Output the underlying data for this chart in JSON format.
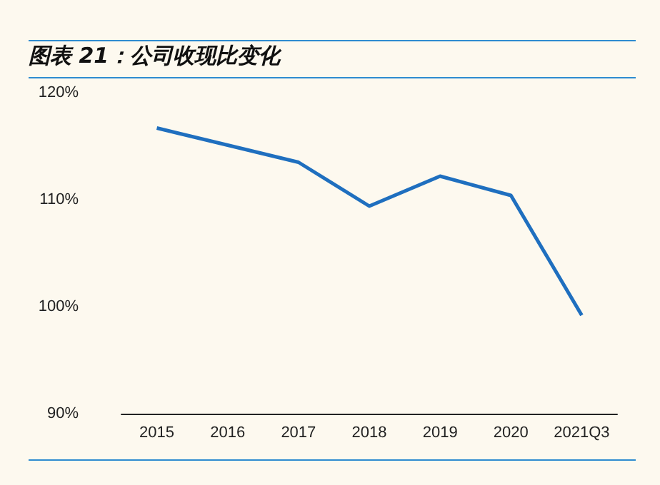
{
  "chart_data": {
    "type": "line",
    "title": "图表 21：公司收现比变化",
    "categories": [
      "2015",
      "2016",
      "2017",
      "2018",
      "2019",
      "2020",
      "2021Q3"
    ],
    "series": [
      {
        "color": "#1f6fbf",
        "values": [
          116.7,
          115.1,
          113.5,
          109.4,
          112.2,
          110.4,
          99.2
        ]
      }
    ],
    "ylim": [
      90,
      120
    ],
    "yticks": [
      {
        "value": 90,
        "label": "90%"
      },
      {
        "value": 100,
        "label": "100%"
      },
      {
        "value": 110,
        "label": "110%"
      },
      {
        "value": 120,
        "label": "120%"
      }
    ],
    "grid": false,
    "marker": "none",
    "line_style": "solid"
  }
}
